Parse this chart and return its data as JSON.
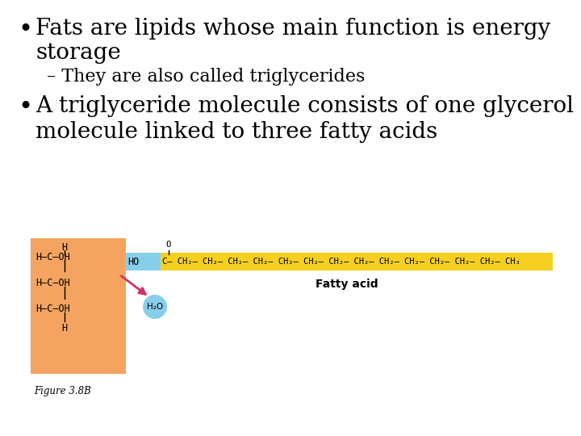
{
  "bg_color": "#ffffff",
  "bullet1_line1": "Fats are lipids whose main function is energy",
  "bullet1_line2": "storage",
  "bullet1_sub": "– They are also called triglycerides",
  "bullet2_line1": "A triglyceride molecule consists of one glycerol",
  "bullet2_line2": "molecule linked to three fatty acids",
  "glycerol_bg": "#f4a460",
  "fatty_acid_bg": "#f5d020",
  "ho_bg": "#87ceeb",
  "h2o_bg": "#87ceeb",
  "fatty_acid_label": "Fatty acid",
  "figure_label": "Figure 3.8B",
  "chain": "C– CH₂– CH₂– CH₂– CH₂– CH₂– CH₂– CH₂– CH₂– CH₂– CH₂– CH₂– CH₂– CH₂– CH₃"
}
